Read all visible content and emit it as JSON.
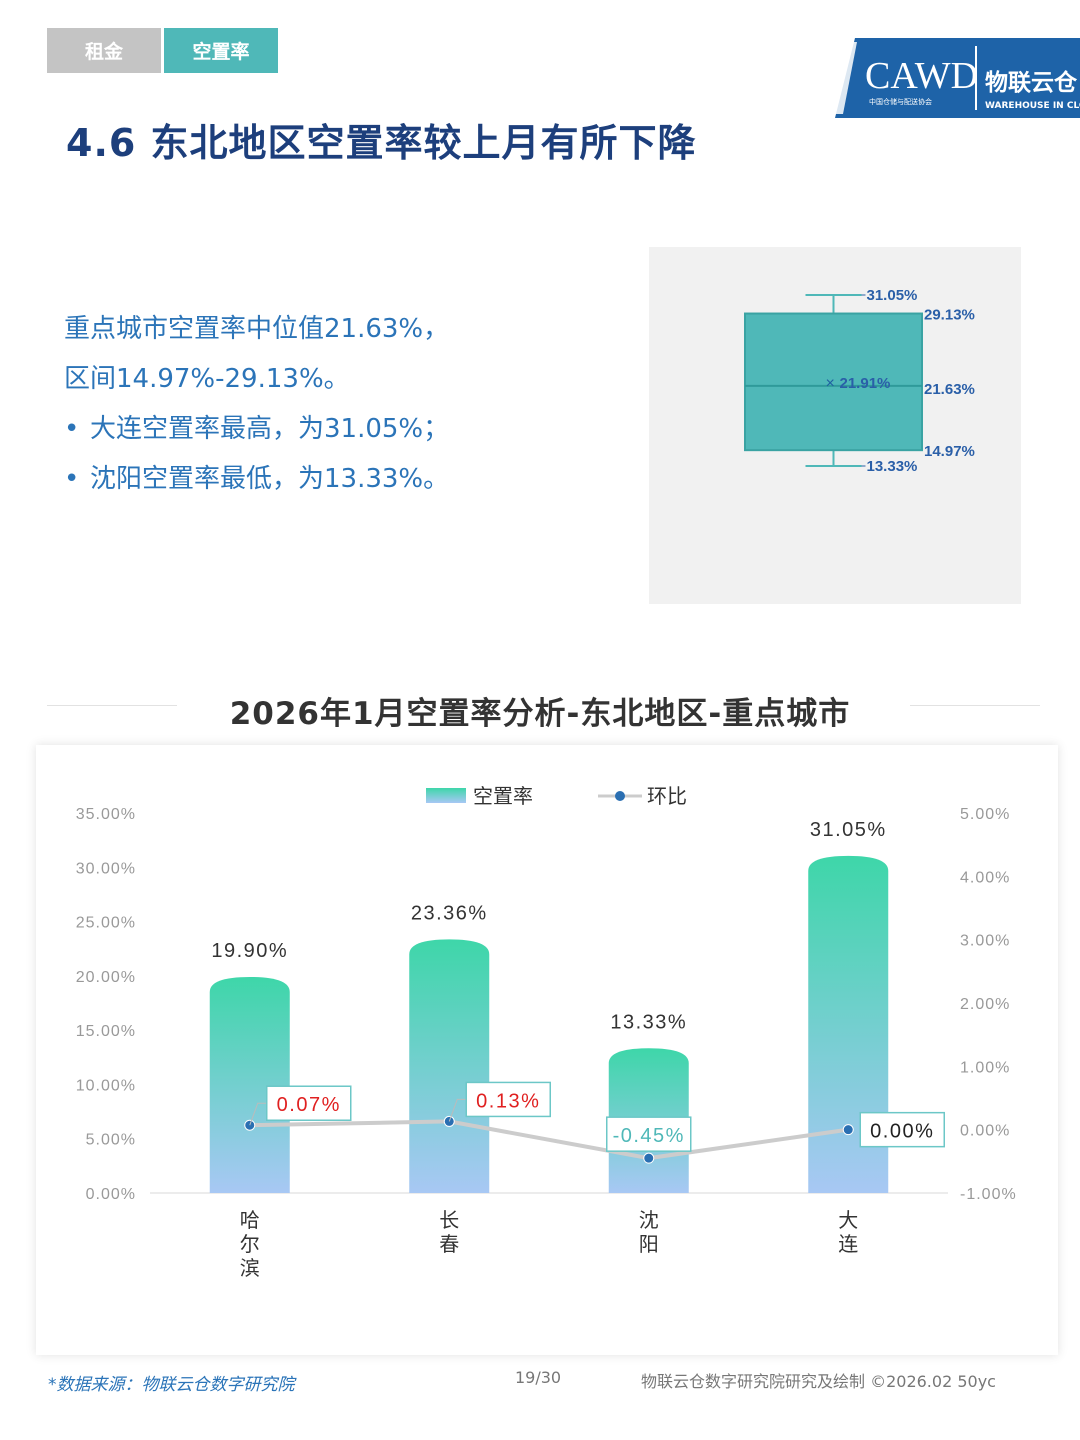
{
  "tabs": [
    {
      "label": "租金"
    },
    {
      "label": "空置率"
    }
  ],
  "logo": {
    "text": "CAWD",
    "subtitle": "中国仓储与配送协会",
    "brand": "物联云仓",
    "brand_sub": "WAREHOUSE IN CLOUD"
  },
  "page_title": "4.6 东北地区空置率较上月有所下降",
  "summary": {
    "line1": "重点城市空置率中位值21.63%，",
    "line2": "区间14.97%-29.13%。",
    "bullet1": "大连空置率最高，为31.05%；",
    "bullet2": "沈阳空置率最低，为13.33%。",
    "bullet_char": "•"
  },
  "boxplot": {
    "max": 31.05,
    "q3": 29.13,
    "mean": 21.91,
    "median": 21.63,
    "q1": 14.97,
    "min": 13.33,
    "labels": {
      "max": "31.05%",
      "q3": "29.13%",
      "mean": "21.91%",
      "median": "21.63%",
      "q1": "14.97%",
      "min": "13.33%"
    },
    "mean_marker": "×",
    "fill_color": "#4fb8b8"
  },
  "chart_title": "2026年1月空置率分析-东北地区-重点城市",
  "chart_data": {
    "type": "bar",
    "categories": [
      "哈尔滨",
      "长春",
      "沈阳",
      "大连"
    ],
    "series": [
      {
        "name": "空置率",
        "type": "bar",
        "axis": "left",
        "values": [
          19.9,
          23.36,
          13.33,
          31.05
        ],
        "labels": [
          "19.90%",
          "23.36%",
          "13.33%",
          "31.05%"
        ]
      },
      {
        "name": "环比",
        "type": "line",
        "axis": "right",
        "values": [
          0.07,
          0.13,
          -0.45,
          0.0
        ],
        "labels": [
          "0.07%",
          "0.13%",
          "-0.45%",
          "0.00%"
        ]
      }
    ],
    "left_axis": {
      "min": 0,
      "max": 35,
      "ticks": [
        "0.00%",
        "5.00%",
        "10.00%",
        "15.00%",
        "20.00%",
        "25.00%",
        "30.00%",
        "35.00%"
      ]
    },
    "right_axis": {
      "min": -1,
      "max": 5,
      "ticks": [
        "-1.00%",
        "0.00%",
        "1.00%",
        "2.00%",
        "3.00%",
        "4.00%",
        "5.00%"
      ]
    },
    "legend_position": "top-center",
    "colors": {
      "bar_top": "#3ed6a9",
      "bar_bottom": "#a8c8f4",
      "line": "#cccccc",
      "marker": "#2a6fb2",
      "positive_label": "#e02020",
      "negative_label": "#4fb8b8",
      "zero_label": "#222222"
    }
  },
  "footer": {
    "source": "*数据来源：物联云仓数字研究院",
    "page": "19/30",
    "credit": "物联云仓数字研究院研究及绘制   ©2026.02 50yc"
  }
}
